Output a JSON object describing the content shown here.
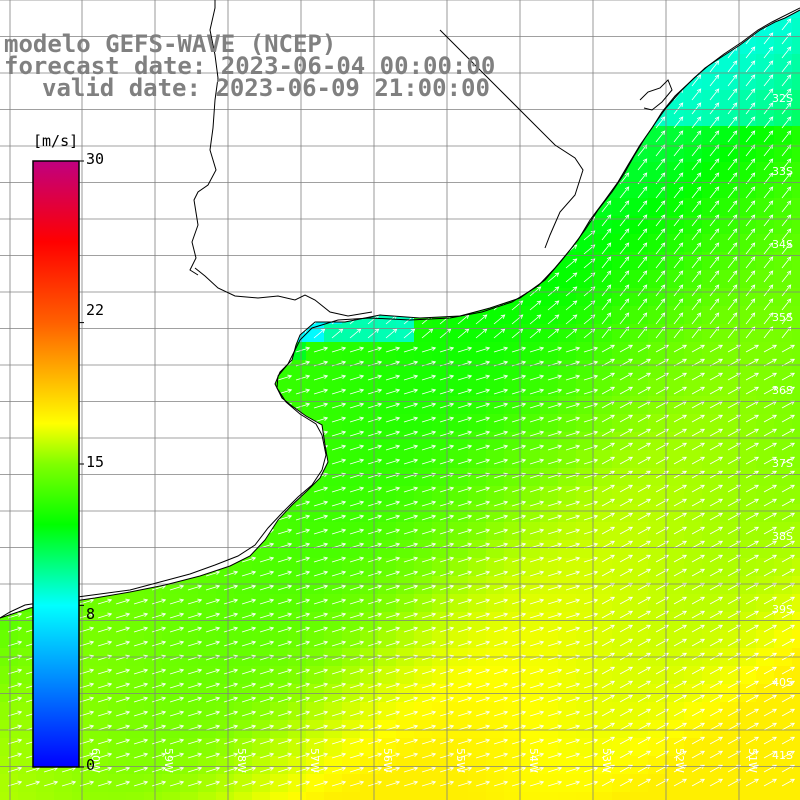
{
  "header": {
    "line1": "modelo GEFS-WAVE (NCEP)",
    "line2": "forecast date: 2023-06-04 00:00:00",
    "line3": "valid date: 2023-06-09 21:00:00"
  },
  "colorbar": {
    "units": "[m/s]",
    "tick_labels": [
      "30",
      "22",
      "15",
      "8",
      "0"
    ],
    "tick_values": [
      30,
      22,
      15,
      8,
      0
    ],
    "min": 0,
    "max": 30,
    "stops": [
      {
        "value": 0,
        "color": "#0000ff"
      },
      {
        "value": 4,
        "color": "#0080ff"
      },
      {
        "value": 8,
        "color": "#00ffff"
      },
      {
        "value": 12,
        "color": "#00ff00"
      },
      {
        "value": 15,
        "color": "#80ff00"
      },
      {
        "value": 17,
        "color": "#ffff00"
      },
      {
        "value": 22,
        "color": "#ff6000"
      },
      {
        "value": 26,
        "color": "#ff0000"
      },
      {
        "value": 30,
        "color": "#c00080"
      }
    ]
  },
  "map": {
    "lat_labels": [
      "32S",
      "33S",
      "34S",
      "35S",
      "36S",
      "37S",
      "38S",
      "39S",
      "40S",
      "41S"
    ],
    "lon_labels": [
      "60W",
      "59W",
      "58W",
      "57W",
      "56W",
      "55W",
      "54W",
      "53W",
      "52W",
      "51W"
    ],
    "land_color": "#ffffff",
    "coast_color": "#000000",
    "grid_color": "#808080",
    "arrow_color": "#ffffff"
  }
}
